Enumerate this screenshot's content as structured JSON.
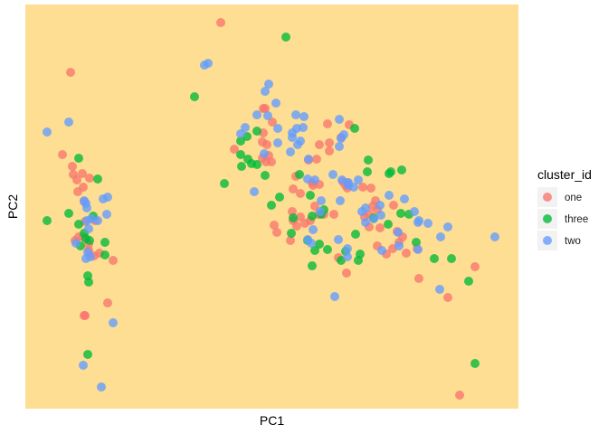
{
  "chart_data": {
    "type": "scatter",
    "title": "",
    "xlabel": "PC1",
    "ylabel": "PC2",
    "xlim": [
      0,
      545
    ],
    "ylim": [
      0,
      447
    ],
    "grid": false,
    "x_tick_labels": [],
    "y_tick_labels": [],
    "panel_background": "#FDDE93",
    "legend": {
      "title": "cluster_id",
      "placement": "right"
    },
    "series": [
      {
        "name": "one",
        "color": "#F8766D",
        "points": [
          [
            216,
            427
          ],
          [
            50,
            372
          ],
          [
            263,
            332
          ],
          [
            41,
            281
          ],
          [
            52,
            268
          ],
          [
            57,
            253
          ],
          [
            63,
            260
          ],
          [
            53,
            259
          ],
          [
            71,
            255
          ],
          [
            64,
            245
          ],
          [
            58,
            240
          ],
          [
            65,
            229
          ],
          [
            66,
            207
          ],
          [
            77,
            208
          ],
          [
            59,
            190
          ],
          [
            55,
            186
          ],
          [
            64,
            190
          ],
          [
            70,
            182
          ],
          [
            70,
            175
          ],
          [
            76,
            169
          ],
          [
            82,
            172
          ],
          [
            97,
            164
          ],
          [
            91,
            117
          ],
          [
            66,
            103
          ],
          [
            65,
            103
          ],
          [
            231,
            287
          ],
          [
            265,
            332
          ],
          [
            263,
            305
          ],
          [
            269,
            280
          ],
          [
            267,
            292
          ],
          [
            273,
            317
          ],
          [
            272,
            273
          ],
          [
            266,
            273
          ],
          [
            262,
            277
          ],
          [
            262,
            295
          ],
          [
            334,
            315
          ],
          [
            336,
            294
          ],
          [
            358,
            314
          ],
          [
            325,
            292
          ],
          [
            322,
            276
          ],
          [
            313,
            275
          ],
          [
            299,
            257
          ],
          [
            296,
            243
          ],
          [
            295,
            218
          ],
          [
            304,
            238
          ],
          [
            309,
            205
          ],
          [
            325,
            248
          ],
          [
            317,
            250
          ],
          [
            318,
            247
          ],
          [
            354,
            247
          ],
          [
            336,
            285
          ],
          [
            351,
            251
          ],
          [
            349,
            300
          ],
          [
            356,
            250
          ],
          [
            356,
            244
          ],
          [
            373,
            245
          ],
          [
            375,
            212
          ],
          [
            380,
            201
          ],
          [
            392,
            200
          ],
          [
            399,
            171
          ],
          [
            406,
            177
          ],
          [
            413,
            184
          ],
          [
            421,
            172
          ],
          [
            433,
            177
          ],
          [
            411,
            196
          ],
          [
            417,
            190
          ],
          [
            435,
            144
          ],
          [
            467,
            123
          ],
          [
            497,
            157
          ],
          [
            480,
            15
          ],
          [
            296,
            208
          ],
          [
            293,
            186
          ],
          [
            304,
            212
          ],
          [
            278,
            195
          ],
          [
            275,
            203
          ],
          [
            389,
            220
          ],
          [
            407,
            225
          ],
          [
            387,
            230
          ],
          [
            382,
            244
          ],
          [
            380,
            215
          ],
          [
            384,
            224
          ],
          [
            389,
            180
          ],
          [
            355,
            150
          ],
          [
            330,
            215
          ],
          [
            346,
            167
          ],
          [
            341,
            215
          ],
          [
            324,
            215
          ],
          [
            320,
            224
          ],
          [
            315,
            208
          ],
          [
            300,
            202
          ]
        ]
      },
      {
        "name": "three",
        "color": "#00BA38",
        "points": [
          [
            288,
            411
          ],
          [
            187,
            345
          ],
          [
            59,
            277
          ],
          [
            80,
            254
          ],
          [
            75,
            213
          ],
          [
            71,
            186
          ],
          [
            24,
            208
          ],
          [
            48,
            216
          ],
          [
            59,
            204
          ],
          [
            61,
            180
          ],
          [
            67,
            188
          ],
          [
            88,
            184
          ],
          [
            88,
            170
          ],
          [
            65,
            194
          ],
          [
            69,
            147
          ],
          [
            70,
            140
          ],
          [
            69,
            60
          ],
          [
            497,
            50
          ],
          [
            220,
            249
          ],
          [
            245,
            301
          ],
          [
            238,
            281
          ],
          [
            239,
            268
          ],
          [
            256,
            270
          ],
          [
            265,
            258
          ],
          [
            281,
            234
          ],
          [
            317,
            213
          ],
          [
            325,
            182
          ],
          [
            334,
            176
          ],
          [
            312,
            186
          ],
          [
            349,
            164
          ],
          [
            354,
            174
          ],
          [
            364,
            310
          ],
          [
            378,
            262
          ],
          [
            379,
            275
          ],
          [
            385,
            211
          ],
          [
            401,
            204
          ],
          [
            402,
            260
          ],
          [
            404,
            262
          ],
          [
            416,
            264
          ],
          [
            415,
            216
          ],
          [
            424,
            215
          ],
          [
            432,
            184
          ],
          [
            452,
            166
          ],
          [
            471,
            166
          ],
          [
            490,
            141
          ],
          [
            320,
            175
          ],
          [
            327,
            215
          ],
          [
            315,
            236
          ],
          [
            238,
            296
          ],
          [
            246,
            276
          ],
          [
            250,
            271
          ],
          [
            303,
            259
          ],
          [
            370,
            171
          ],
          [
            368,
            164
          ],
          [
            365,
            193
          ],
          [
            330,
            220
          ],
          [
            317,
            158
          ],
          [
            296,
            211
          ],
          [
            272,
            225
          ],
          [
            294,
            194
          ],
          [
            256,
            307
          ]
        ]
      },
      {
        "name": "two",
        "color": "#619CFF",
        "points": [
          [
            198,
            380
          ],
          [
            202,
            382
          ],
          [
            48,
            317
          ],
          [
            24,
            306
          ],
          [
            91,
            234
          ],
          [
            68,
            208
          ],
          [
            80,
            208
          ],
          [
            90,
            215
          ],
          [
            86,
            232
          ],
          [
            67,
            227
          ],
          [
            68,
            222
          ],
          [
            73,
            210
          ],
          [
            65,
            230
          ],
          [
            56,
            183
          ],
          [
            72,
            168
          ],
          [
            70,
            199
          ],
          [
            69,
            173
          ],
          [
            67,
            166
          ],
          [
            97,
            95
          ],
          [
            64,
            48
          ],
          [
            84,
            24
          ],
          [
            238,
            304
          ],
          [
            243,
            311
          ],
          [
            265,
            351
          ],
          [
            269,
            359
          ],
          [
            277,
            338
          ],
          [
            299,
            325
          ],
          [
            308,
            323
          ],
          [
            307,
            311
          ],
          [
            300,
            310
          ],
          [
            295,
            305
          ],
          [
            295,
            300
          ],
          [
            293,
            284
          ],
          [
            301,
            292
          ],
          [
            304,
            296
          ],
          [
            313,
            276
          ],
          [
            312,
            254
          ],
          [
            320,
            253
          ],
          [
            340,
            259
          ],
          [
            350,
            253
          ],
          [
            347,
            290
          ],
          [
            347,
            320
          ],
          [
            357,
            250
          ],
          [
            363,
            245
          ],
          [
            349,
            299
          ],
          [
            352,
            303
          ],
          [
            376,
            222
          ],
          [
            376,
            206
          ],
          [
            385,
            210
          ],
          [
            392,
            225
          ],
          [
            419,
            232
          ],
          [
            435,
            208
          ],
          [
            445,
            205
          ],
          [
            467,
            201
          ],
          [
            458,
            132
          ],
          [
            459,
            190
          ],
          [
            519,
            190
          ],
          [
            394,
            175
          ],
          [
            412,
            195
          ],
          [
            413,
            180
          ],
          [
            434,
            176
          ],
          [
            327,
            230
          ],
          [
            316,
            183
          ],
          [
            342,
            124
          ],
          [
            357,
            247
          ],
          [
            368,
            253
          ],
          [
            268,
            324
          ],
          [
            279,
            310
          ],
          [
            256,
            325
          ],
          [
            264,
            282
          ],
          [
            253,
            240
          ],
          [
            279,
            294
          ],
          [
            312,
            187
          ],
          [
            318,
            198
          ],
          [
            348,
            230
          ],
          [
            326,
            218
          ],
          [
            356,
            177
          ],
          [
            356,
            168
          ],
          [
            372,
            218
          ],
          [
            402,
            236
          ],
          [
            430,
            218
          ],
          [
            434,
            206
          ],
          [
            393,
            214
          ],
          [
            346,
            187
          ]
        ]
      }
    ]
  }
}
